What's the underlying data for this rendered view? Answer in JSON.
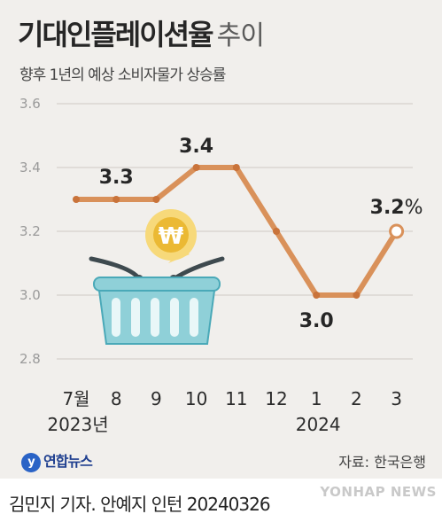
{
  "title": {
    "main": "기대인플레이션율",
    "suffix": "추이"
  },
  "subtitle": "향후 1년의 예상 소비자물가 상승률",
  "footer": {
    "logo_text": "연합뉴스",
    "source": "자료: 한국은행",
    "byline": "김민지 기자. 안예지 인턴 20240326",
    "watermark": "YONHAP NEWS"
  },
  "colors": {
    "line": "#d9915a",
    "marker": "#c9733a",
    "grid": "#cfcac4",
    "text": "#2b2b2b"
  },
  "icons": [
    "shopping-basket-icon",
    "won-coin-icon"
  ],
  "chart_data": {
    "type": "line",
    "categories": [
      "7월",
      "8",
      "9",
      "10",
      "11",
      "12",
      "1",
      "2",
      "3"
    ],
    "year_labels": [
      "2023년",
      "2024"
    ],
    "values": [
      3.3,
      3.3,
      3.3,
      3.4,
      3.4,
      3.2,
      3.0,
      3.0,
      3.2
    ],
    "data_labels": [
      {
        "index": 1,
        "text": "3.3"
      },
      {
        "index": 3,
        "text": "3.4"
      },
      {
        "index": 6,
        "text": "3.0"
      },
      {
        "index": 8,
        "text": "3.2",
        "unit": "%"
      }
    ],
    "yticks": [
      "3.6",
      "3.4",
      "3.2",
      "3.0",
      "2.8"
    ],
    "ylim": [
      2.8,
      3.6
    ],
    "grid": true,
    "unit": "%"
  }
}
